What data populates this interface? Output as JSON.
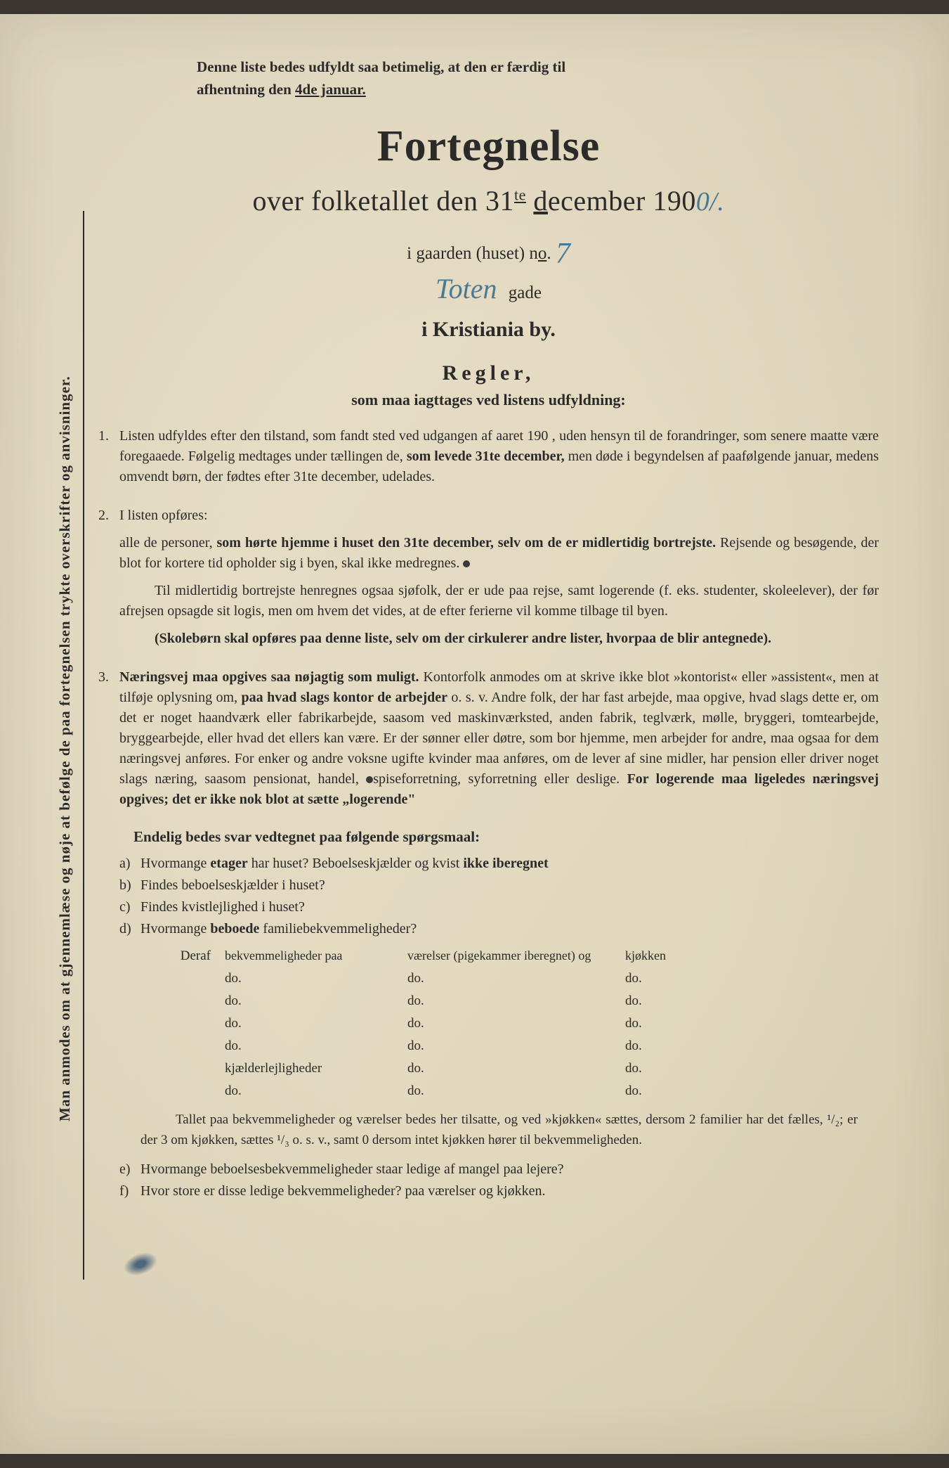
{
  "colors": {
    "paper_bg": "#e4dbc2",
    "text": "#2a2a2a",
    "handwritten": "#4a7a95"
  },
  "typography": {
    "body_fontsize": 20,
    "main_title_fontsize": 62,
    "subtitle_fontsize": 40,
    "regler_fontsize": 30
  },
  "sidebar_vertical": "Man anmodes om at gjennemlæse og nøje at befølge de paa fortegnelsen trykte overskrifter og anvisninger.",
  "top_note": {
    "line1": "Denne liste bedes udfyldt saa betimelig, at den er færdig til",
    "line2_prefix": "afhentning den ",
    "line2_underlined": "4de januar."
  },
  "title": {
    "main": "Fortegnelse",
    "sub_prefix": "over folketallet den 31",
    "sub_sup": "te",
    "sub_mid": " ",
    "sub_underlined": "d",
    "sub_after": "ecember 190",
    "year_hand": "0/."
  },
  "location": {
    "gaarden_prefix": "i gaarden (huset) n",
    "gaarden_o_underlined": "o",
    "gaarden_dot": ".",
    "house_no": "7",
    "street_name_hand": "Toten",
    "street_suffix": "gade",
    "city": "i Kristiania by."
  },
  "regler": {
    "title": "Regler,",
    "subtitle": "som maa iagttages ved listens udfyldning:"
  },
  "rules": [
    {
      "num": "1.",
      "paras": [
        {
          "parts": [
            {
              "t": "Listen udfyldes efter den tilstand, som fandt sted ved udgangen af aaret 190    , uden hensyn til de forandringer, som senere maatte være foregaaede.  Følgelig medtages under tællingen de, "
            },
            {
              "t": "som levede 31te december,",
              "b": true
            },
            {
              "t": " men døde i begyndelsen af paafølgende januar, medens omvendt børn, der fødtes efter 31te december, udelades."
            }
          ]
        }
      ]
    },
    {
      "num": "2.",
      "paras": [
        {
          "parts": [
            {
              "t": "I listen opføres:"
            }
          ]
        },
        {
          "parts": [
            {
              "t": "alle de personer, "
            },
            {
              "t": "som hørte hjemme i huset den 31te december, selv om de er midlertidig bortrejste.",
              "b": true
            },
            {
              "t": "  Rejsende og besøgende, der blot for kortere tid opholder sig i byen, skal ikke medregnes.            "
            },
            {
              "dot": true
            }
          ]
        },
        {
          "indent": true,
          "parts": [
            {
              "t": "Til midlertidig bortrejste henregnes ogsaa sjøfolk, der er ude paa rejse, samt logerende (f. eks. studenter, skoleelever), der før afrejsen opsagde sit logis, men om hvem det vides, at de efter ferierne vil komme tilbage til byen."
            }
          ]
        },
        {
          "indent": true,
          "parts": [
            {
              "t": "(Skolebørn skal opføres paa denne liste, selv om der cirkulerer andre lister, hvorpaa de blir antegnede).",
              "b": true
            }
          ]
        }
      ]
    },
    {
      "num": "3.",
      "paras": [
        {
          "parts": [
            {
              "t": "Næringsvej maa opgives saa nøjagtig som muligt.",
              "b": true
            },
            {
              "t": "  Kontorfolk anmodes om at skrive ikke blot »kontorist« eller »assistent«, men at tilføje oplysning om, "
            },
            {
              "t": "paa hvad slags kontor de arbejder",
              "b": true
            },
            {
              "t": " o. s. v.  Andre folk, der har fast arbejde, maa opgive, hvad slags dette er, om det er noget haandværk eller fabrikarbejde, saasom ved maskinværksted, anden fabrik, teglværk, mølle, bryggeri, tomtearbejde, bryggearbejde, eller hvad det ellers kan være.  Er der sønner eller døtre, som bor hjemme, men arbejder for andre, maa ogsaa for dem næringsvej anføres.  For enker og andre voksne ugifte kvinder maa anføres, om de lever af sine midler, har pension eller driver noget slags næring, saasom pensionat, handel, "
            },
            {
              "dot": true
            },
            {
              "t": "spiseforretning, syforretning eller deslige.  "
            },
            {
              "t": "For logerende maa ligeledes næringsvej opgives; det er ikke nok blot at sætte „logerende\"",
              "b": true
            }
          ]
        }
      ]
    }
  ],
  "final_q_title": "Endelig bedes svar vedtegnet paa følgende spørgsmaal:",
  "sub_questions": [
    {
      "letter": "a)",
      "parts": [
        {
          "t": "Hvormange "
        },
        {
          "t": "etager",
          "b": true
        },
        {
          "t": " har huset?  Beboelseskjælder og kvist "
        },
        {
          "t": "ikke iberegnet",
          "b": true
        }
      ]
    },
    {
      "letter": "b)",
      "parts": [
        {
          "t": "Findes beboelseskjælder i huset?"
        }
      ]
    },
    {
      "letter": "c)",
      "parts": [
        {
          "t": "Findes kvistlejlighed i huset?"
        }
      ]
    },
    {
      "letter": "d)",
      "parts": [
        {
          "t": "Hvormange "
        },
        {
          "t": "beboede",
          "b": true
        },
        {
          "t": " familiebekvemmeligheder?"
        }
      ]
    }
  ],
  "table": {
    "header": {
      "c1": "Deraf",
      "c2": "bekvemmeligheder paa",
      "c3": "værelser (pigekammer iberegnet) og",
      "c4": "kjøkken"
    },
    "rows": [
      {
        "c1": "",
        "c2": "do.",
        "c3": "do.",
        "c4": "do."
      },
      {
        "c1": "",
        "c2": "do.",
        "c3": "do.",
        "c4": "do."
      },
      {
        "c1": "",
        "c2": "do.",
        "c3": "do.",
        "c4": "do."
      },
      {
        "c1": "",
        "c2": "do.",
        "c3": "do.",
        "c4": "do."
      },
      {
        "c1": "",
        "c2": "kjælderlejligheder",
        "c3": "do.",
        "c4": "do."
      },
      {
        "c1": "",
        "c2": "do.",
        "c3": "do.",
        "c4": "do."
      }
    ]
  },
  "footer_note": "Tallet paa bekvemmeligheder og værelser bedes her tilsatte, og ved »kjøkken« sættes, dersom 2 familier har det fælles, ¹/₂; er der 3 om kjøkken, sættes ¹/₃ o. s. v., samt 0 dersom intet kjøkken hører til bekvemmeligheden.",
  "sub_questions2": [
    {
      "letter": "e)",
      "parts": [
        {
          "t": "Hvormange beboelsesbekvemmeligheder staar ledige af mangel paa lejere?"
        }
      ]
    },
    {
      "letter": "f)",
      "parts": [
        {
          "t": "Hvor store er disse ledige bekvemmeligheder?          paa          værelser og          kjøkken."
        }
      ]
    }
  ]
}
